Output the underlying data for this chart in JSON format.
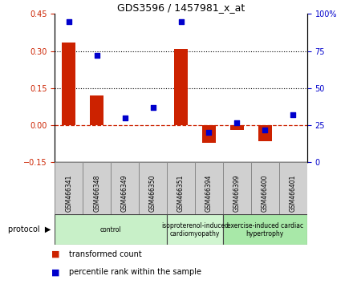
{
  "title": "GDS3596 / 1457981_x_at",
  "samples": [
    "GSM466341",
    "GSM466348",
    "GSM466349",
    "GSM466350",
    "GSM466351",
    "GSM466394",
    "GSM466399",
    "GSM466400",
    "GSM466401"
  ],
  "transformed_count": [
    0.335,
    0.12,
    0.0,
    0.0,
    0.31,
    -0.07,
    -0.02,
    -0.065,
    0.0
  ],
  "percentile_rank": [
    95,
    72,
    30,
    37,
    95,
    20,
    27,
    22,
    32
  ],
  "groups": [
    {
      "label": "control",
      "indices": [
        0,
        1,
        2,
        3
      ],
      "color": "#c8f0c8"
    },
    {
      "label": "isoproterenol-induced\ncardiomyopathy",
      "indices": [
        4,
        5
      ],
      "color": "#d0f5d0"
    },
    {
      "label": "exercise-induced cardiac\nhypertrophy",
      "indices": [
        6,
        7,
        8
      ],
      "color": "#a8e8a8"
    }
  ],
  "left_ylim": [
    -0.15,
    0.45
  ],
  "left_yticks": [
    -0.15,
    0.0,
    0.15,
    0.3,
    0.45
  ],
  "right_ylim": [
    0,
    100
  ],
  "right_yticks": [
    0,
    25,
    50,
    75,
    100
  ],
  "right_yticklabels": [
    "0",
    "25",
    "50",
    "75",
    "100%"
  ],
  "bar_color": "#cc2200",
  "dot_color": "#0000cc",
  "hline_y": 0.0,
  "dotted_lines": [
    0.15,
    0.3
  ],
  "background_color": "#ffffff",
  "gray_cell": "#d0d0d0",
  "cell_border": "#888888"
}
